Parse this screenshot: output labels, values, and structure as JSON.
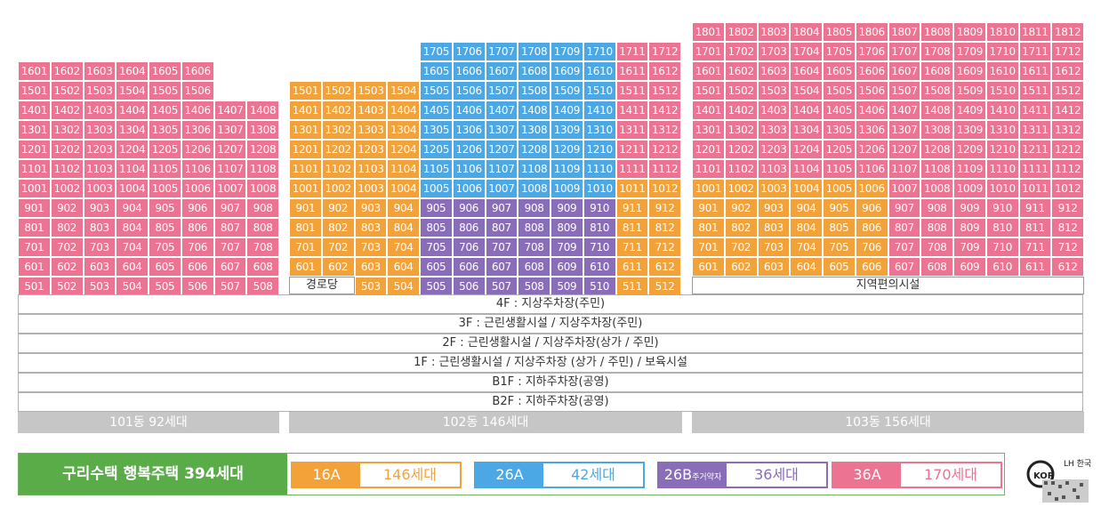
{
  "colors": {
    "16A": "#f3a23a",
    "26A": "#4ba8e4",
    "26B": "#8a6db8",
    "36A": "#ec7391"
  },
  "buildings": [
    {
      "id": "101",
      "label": "101동 92세대"
    },
    {
      "id": "102",
      "label": "102동 146세대"
    },
    {
      "id": "103",
      "label": "103동 156세대"
    }
  ],
  "special_units": {
    "b102_5_1": "경로당",
    "b103_5": "지역편의시설"
  },
  "podium_floors": [
    "4F : 지상주차장(주민)",
    "3F : 근린생활시설 / 지상주차장(주민)",
    "2F : 근린생활시설 / 지상주차장(상가 / 주민)",
    "1F : 근린생활시설 / 지상주차장 (상가 / 주민) / 보육시설",
    "B1F : 지하주차장(공영)",
    "B2F : 지하주차장(공영)"
  ],
  "legend": {
    "title": "구리수택 행복주택 394세대",
    "items": [
      {
        "type": "16A",
        "sub": "",
        "count": "146세대",
        "color": "#f3a23a"
      },
      {
        "type": "26A",
        "sub": "",
        "count": "42세대",
        "color": "#4ba8e4"
      },
      {
        "type": "26B",
        "sub": "주거약자",
        "count": "36세대",
        "color": "#8a6db8"
      },
      {
        "type": "36A",
        "sub": "",
        "count": "170세대",
        "color": "#ec7391"
      }
    ],
    "logo_text": "LH 한국"
  }
}
